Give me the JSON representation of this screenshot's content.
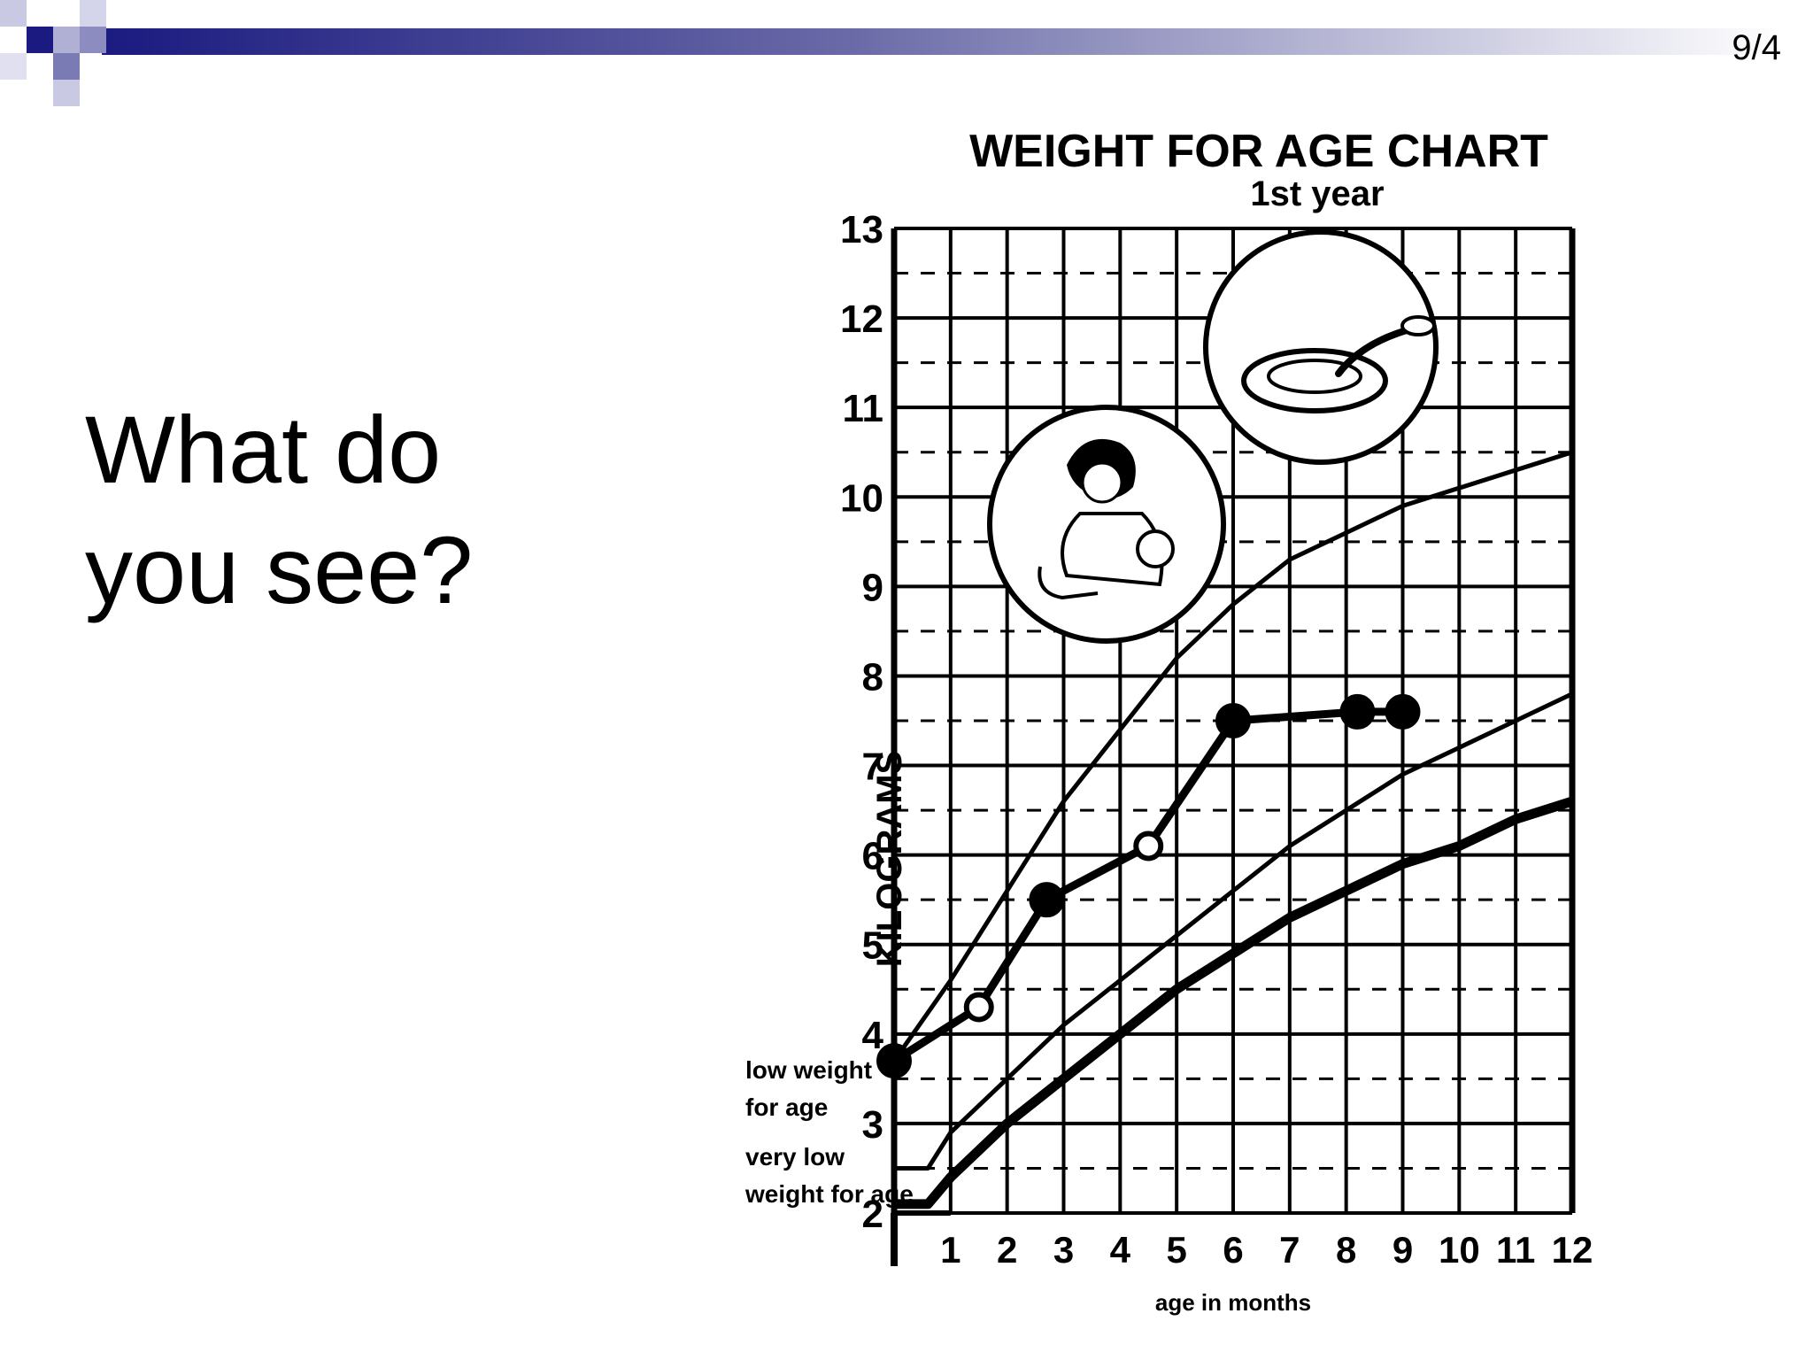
{
  "slide": {
    "page_number": "9/4",
    "question_line1": "What do",
    "question_line2": "you see?"
  },
  "colors": {
    "accent": "#1a1a80",
    "grid": "#000000"
  },
  "chart_data": {
    "type": "line",
    "title": "WEIGHT FOR AGE CHART",
    "subtitle": "1st year",
    "ylabel": "KILOGRAMS",
    "xlabel": "age in months",
    "xlim": [
      0,
      12
    ],
    "ylim": [
      2,
      13
    ],
    "xticks": [
      1,
      2,
      3,
      4,
      5,
      6,
      7,
      8,
      9,
      10,
      11,
      12
    ],
    "yticks": [
      2,
      3,
      4,
      5,
      6,
      7,
      8,
      9,
      10,
      11,
      12,
      13
    ],
    "grid": true,
    "annotations": [
      "low weight for age",
      "very low weight for age"
    ],
    "series": [
      {
        "name": "",
        "style": "thin",
        "x": [
          0,
          1,
          2,
          3,
          4,
          5,
          6,
          7,
          8,
          9,
          10,
          11,
          12
        ],
        "y": [
          3.7,
          4.6,
          5.6,
          6.6,
          7.4,
          8.2,
          8.8,
          9.3,
          9.6,
          9.9,
          10.1,
          10.3,
          10.5
        ]
      },
      {
        "name": "low weight for age",
        "style": "thin",
        "x": [
          0,
          0.6,
          1,
          2,
          3,
          4,
          5,
          6,
          7,
          8,
          9,
          10,
          11,
          12
        ],
        "y": [
          2.5,
          2.5,
          2.9,
          3.5,
          4.1,
          4.6,
          5.1,
          5.6,
          6.1,
          6.5,
          6.9,
          7.2,
          7.5,
          7.8
        ]
      },
      {
        "name": "very low weight for age",
        "style": "thick",
        "x": [
          0,
          0.6,
          1,
          2,
          3,
          4,
          5,
          6,
          7,
          8,
          9,
          10,
          11,
          12
        ],
        "y": [
          2.1,
          2.1,
          2.4,
          3.0,
          3.5,
          4.0,
          4.5,
          4.9,
          5.3,
          5.6,
          5.9,
          6.1,
          6.4,
          6.6
        ]
      },
      {
        "name": "",
        "style": "child",
        "x": [
          0,
          1.5,
          2.7,
          4.5,
          6,
          8.2,
          9
        ],
        "y": [
          3.7,
          4.3,
          5.5,
          6.1,
          7.5,
          7.6,
          7.6
        ],
        "marker_filled": [
          true,
          false,
          true,
          false,
          true,
          true,
          true
        ]
      }
    ]
  }
}
